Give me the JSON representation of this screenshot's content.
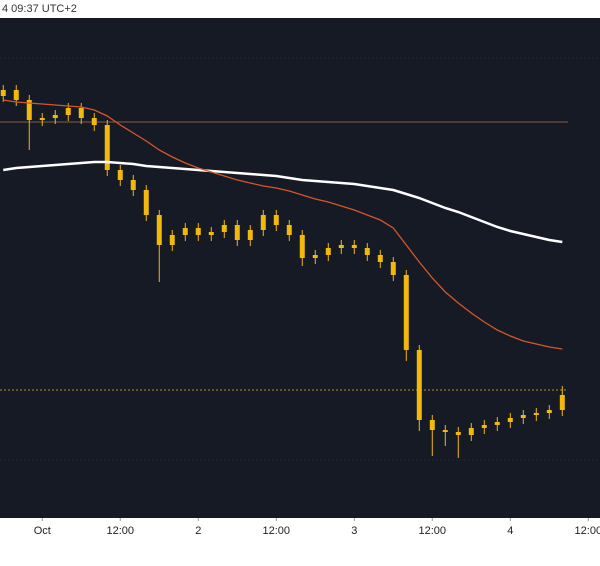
{
  "chart_data": {
    "type": "candlestick",
    "timestamp": "4 09:37 UTC+2",
    "color": "#f0b90b",
    "open": [
      470,
      476,
      466,
      446,
      448,
      451,
      458,
      448,
      441,
      396,
      386,
      376,
      351,
      321,
      331,
      338,
      331,
      334,
      341,
      326,
      336,
      351,
      341,
      331,
      308,
      311,
      318,
      321,
      318,
      311,
      304,
      291,
      216,
      146,
      136,
      134,
      131,
      138,
      141,
      144,
      148,
      151,
      153,
      156
    ],
    "high": [
      481,
      481,
      471,
      453,
      456,
      463,
      463,
      453,
      446,
      401,
      391,
      381,
      356,
      336,
      343,
      343,
      339,
      346,
      346,
      341,
      356,
      356,
      346,
      336,
      316,
      323,
      326,
      326,
      323,
      316,
      309,
      296,
      221,
      151,
      141,
      139,
      143,
      146,
      149,
      153,
      156,
      158,
      161,
      180
    ],
    "low": [
      464,
      460,
      416,
      440,
      442,
      445,
      442,
      435,
      390,
      380,
      370,
      345,
      284,
      315,
      325,
      325,
      325,
      328,
      320,
      320,
      330,
      335,
      325,
      300,
      302,
      305,
      312,
      312,
      305,
      298,
      285,
      205,
      135,
      110,
      120,
      108,
      125,
      132,
      135,
      138,
      142,
      145,
      147,
      150
    ],
    "close": [
      476,
      466,
      446,
      448,
      451,
      458,
      448,
      441,
      396,
      386,
      376,
      351,
      321,
      331,
      338,
      331,
      334,
      341,
      326,
      336,
      351,
      341,
      331,
      308,
      311,
      318,
      321,
      318,
      311,
      304,
      291,
      216,
      146,
      136,
      134,
      131,
      138,
      141,
      144,
      148,
      151,
      153,
      156,
      171
    ],
    "moving_averages": [
      {
        "color": "#ffffff",
        "values": [
          396,
          398,
          399,
          400,
          401,
          402,
          403,
          404,
          404,
          403,
          402,
          400,
          399,
          398,
          397,
          396,
          395,
          394,
          393,
          392,
          391,
          390,
          388,
          386,
          385,
          384,
          383,
          382,
          380,
          378,
          376,
          372,
          368,
          363,
          358,
          354,
          349,
          344,
          339,
          335,
          332,
          329,
          326,
          324
        ]
      },
      {
        "color": "#d4572a",
        "values": [
          466,
          464,
          463,
          462,
          461,
          460,
          459,
          456,
          450,
          441,
          433,
          425,
          416,
          409,
          403,
          398,
          394,
          390,
          386,
          383,
          380,
          378,
          375,
          371,
          367,
          364,
          360,
          356,
          351,
          346,
          338,
          321,
          304,
          288,
          274,
          263,
          253,
          244,
          236,
          230,
          225,
          222,
          219,
          217
        ]
      }
    ],
    "price_lines": [
      {
        "value": 444,
        "color": "#8a5a48",
        "dashed": false
      },
      {
        "value": 176,
        "color": "#c08a1e",
        "dashed": true
      }
    ],
    "ylim": [
      48,
      548
    ],
    "xlim": [
      -0.25,
      45.9
    ],
    "xticks": [
      {
        "value": 3,
        "label": "Oct"
      },
      {
        "value": 9,
        "label": "12:00"
      },
      {
        "value": 15,
        "label": "2"
      },
      {
        "value": 21,
        "label": "12:00"
      },
      {
        "value": 27,
        "label": "3"
      },
      {
        "value": 33,
        "label": "12:00"
      },
      {
        "value": 39,
        "label": "4"
      },
      {
        "value": 45,
        "label": "12:00"
      }
    ]
  }
}
